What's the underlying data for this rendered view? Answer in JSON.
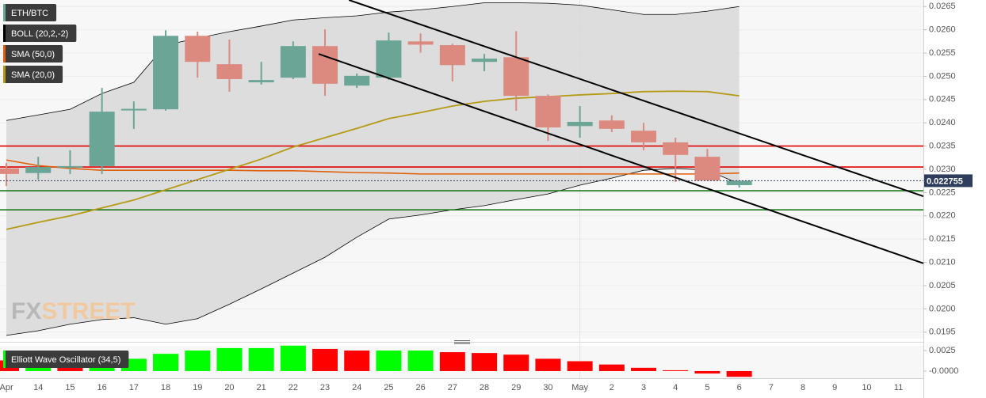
{
  "chart_data": [
    {
      "type": "candlestick",
      "categories": [
        "Apr",
        "14",
        "15",
        "16",
        "17",
        "18",
        "19",
        "20",
        "21",
        "22",
        "23",
        "24",
        "25",
        "26",
        "27",
        "28",
        "29",
        "30",
        "May",
        "2",
        "3",
        "4",
        "5",
        "6",
        "7",
        "8",
        "9",
        "10",
        "11"
      ],
      "xlim": [
        -0.2,
        28.78
      ],
      "ylim": [
        0.01936,
        0.02664
      ],
      "yticks": [
        0.0265,
        {
          "value": 0.026,
          "label": "0.0260"
        },
        0.0255,
        {
          "value": 0.025,
          "label": "0.0250"
        },
        0.0245,
        {
          "value": 0.024,
          "label": "0.0240"
        },
        0.0235,
        {
          "value": 0.023,
          "label": "0.0230"
        },
        0.0225,
        {
          "value": 0.022,
          "label": "0.0220"
        },
        0.0215,
        {
          "value": 0.021,
          "label": "0.0210"
        },
        0.0205,
        {
          "value": 0.02,
          "label": "0.0200"
        },
        0.0195
      ],
      "grid": true,
      "last_price": 0.022755,
      "watermark": [
        "FX",
        "STREET"
      ],
      "series": [
        {
          "name": "ETH/BTC",
          "color": "#6aa595",
          "down_color": "#dc8a80",
          "open": [
            0.02302,
            0.02292,
            0.02306,
            0.02307,
            0.02428,
            0.02429,
            0.02587,
            0.02526,
            0.02487,
            0.02497,
            0.02565,
            0.0248,
            0.02497,
            0.02575,
            0.02567,
            0.02531,
            0.02541,
            0.02458,
            0.02393,
            0.02405,
            0.02383,
            0.02358,
            0.02327,
            0.02266,
            null,
            null,
            null,
            null,
            null
          ],
          "high": [
            0.02314,
            0.02327,
            0.02341,
            0.02475,
            0.02446,
            0.02599,
            0.02596,
            0.02579,
            0.02531,
            0.02575,
            0.02601,
            0.02506,
            0.02594,
            0.02592,
            0.0257,
            0.02548,
            0.02597,
            0.02461,
            0.02436,
            0.02416,
            0.024,
            0.02368,
            0.02344,
            0.02276,
            null,
            null,
            null,
            null,
            null
          ],
          "low": [
            0.02264,
            0.02278,
            0.0229,
            0.0229,
            0.02387,
            0.02426,
            0.02497,
            0.02467,
            0.02482,
            0.02494,
            0.02458,
            0.02475,
            0.02492,
            0.02551,
            0.02489,
            0.02511,
            0.02426,
            0.02361,
            0.02368,
            0.0238,
            0.02341,
            0.02273,
            0.02276,
            0.02261,
            null,
            null,
            null,
            null,
            null
          ],
          "close": [
            0.0229,
            0.02305,
            0.02307,
            0.02424,
            0.0243,
            0.02587,
            0.02531,
            0.02494,
            0.02492,
            0.02565,
            0.02484,
            0.02501,
            0.02577,
            0.02568,
            0.02524,
            0.02538,
            0.02458,
            0.0239,
            0.02402,
            0.02387,
            0.02358,
            0.02331,
            0.02276,
            0.022755,
            null,
            null,
            null,
            null,
            null
          ]
        },
        {
          "name": "BOLL (20,2,-2)",
          "color": "#000000",
          "fill": "#d8d8d8",
          "upper": [
            0.02405,
            0.02417,
            0.02429,
            0.02463,
            0.02487,
            0.02567,
            0.02582,
            0.02596,
            0.02608,
            0.02621,
            0.02626,
            0.0263,
            0.02638,
            0.02643,
            0.0265,
            0.02658,
            0.02658,
            0.02657,
            0.02653,
            0.02643,
            0.02633,
            0.02633,
            0.0264,
            0.0265,
            null,
            null,
            null,
            null,
            null
          ],
          "lower": [
            0.01943,
            0.01953,
            0.01967,
            0.01977,
            0.01981,
            0.01967,
            0.01979,
            0.0201,
            0.02043,
            0.02077,
            0.02111,
            0.02154,
            0.02193,
            0.02202,
            0.02213,
            0.02222,
            0.02235,
            0.02247,
            0.02266,
            0.02281,
            0.02298,
            0.02302,
            0.02298,
            0.02269,
            null,
            null,
            null,
            null,
            null
          ]
        },
        {
          "name": "SMA (50,0)",
          "color": "#e0600a",
          "values": [
            0.0232,
            0.02308,
            0.02302,
            0.02298,
            0.02298,
            0.02298,
            0.02298,
            0.02298,
            0.02297,
            0.02297,
            0.02295,
            0.02293,
            0.02292,
            0.0229,
            0.0229,
            0.0229,
            0.0229,
            0.0229,
            0.0229,
            0.0229,
            0.0229,
            0.0229,
            0.0229,
            0.02292,
            null,
            null,
            null,
            null,
            null
          ]
        },
        {
          "name": "SMA (20,0)",
          "color": "#b59a14",
          "values": [
            0.02171,
            0.02186,
            0.022,
            0.02217,
            0.02234,
            0.02256,
            0.02278,
            0.023,
            0.02322,
            0.02348,
            0.02368,
            0.02388,
            0.02409,
            0.02422,
            0.02436,
            0.02446,
            0.02453,
            0.02456,
            0.0246,
            0.02463,
            0.02467,
            0.02468,
            0.02467,
            0.02458,
            null,
            null,
            null,
            null,
            null
          ]
        }
      ],
      "levels": [
        {
          "value": 0.0235,
          "color": "#e00000"
        },
        {
          "value": 0.02305,
          "color": "#e00000"
        },
        {
          "value": 0.02254,
          "color": "#1a7a1a"
        },
        {
          "value": 0.02213,
          "color": "#1a7a1a"
        }
      ],
      "trendlines": [
        {
          "x": [
            10.75,
            28.78
          ],
          "y": [
            0.02664,
            0.02242
          ],
          "color": "#000000"
        },
        {
          "x": [
            9.8,
            28.78
          ],
          "y": [
            0.02548,
            0.02098
          ],
          "color": "#000000"
        }
      ]
    },
    {
      "type": "bar",
      "title": "Elliott Wave Oscillator (34,5)",
      "ylim": [
        -0.00087,
        0.00308
      ],
      "yticks": [
        0.0025,
        {
          "value": 0,
          "label": "-0.0000"
        }
      ],
      "values": [
        0.0013,
        0.0009,
        0.001,
        0.0015,
        0.0015,
        0.0021,
        0.0025,
        0.0028,
        0.0028,
        0.0031,
        0.0027,
        0.0025,
        0.0025,
        0.0025,
        0.0023,
        0.0022,
        0.002,
        0.0015,
        0.0012,
        0.0008,
        0.0004,
        0.0001,
        -0.0003,
        -0.0007
      ],
      "colors": [
        "#ff0000",
        "#00ff00",
        "#ff0000",
        "#00ff00",
        "#00ff00",
        "#00ff00",
        "#00ff00",
        "#00ff00",
        "#00ff00",
        "#00ff00",
        "#ff0000",
        "#ff0000",
        "#00ff00",
        "#00ff00",
        "#ff0000",
        "#ff0000",
        "#ff0000",
        "#ff0000",
        "#ff0000",
        "#ff0000",
        "#ff0000",
        "#ff0000",
        "#ff0000",
        "#ff0000"
      ]
    }
  ]
}
